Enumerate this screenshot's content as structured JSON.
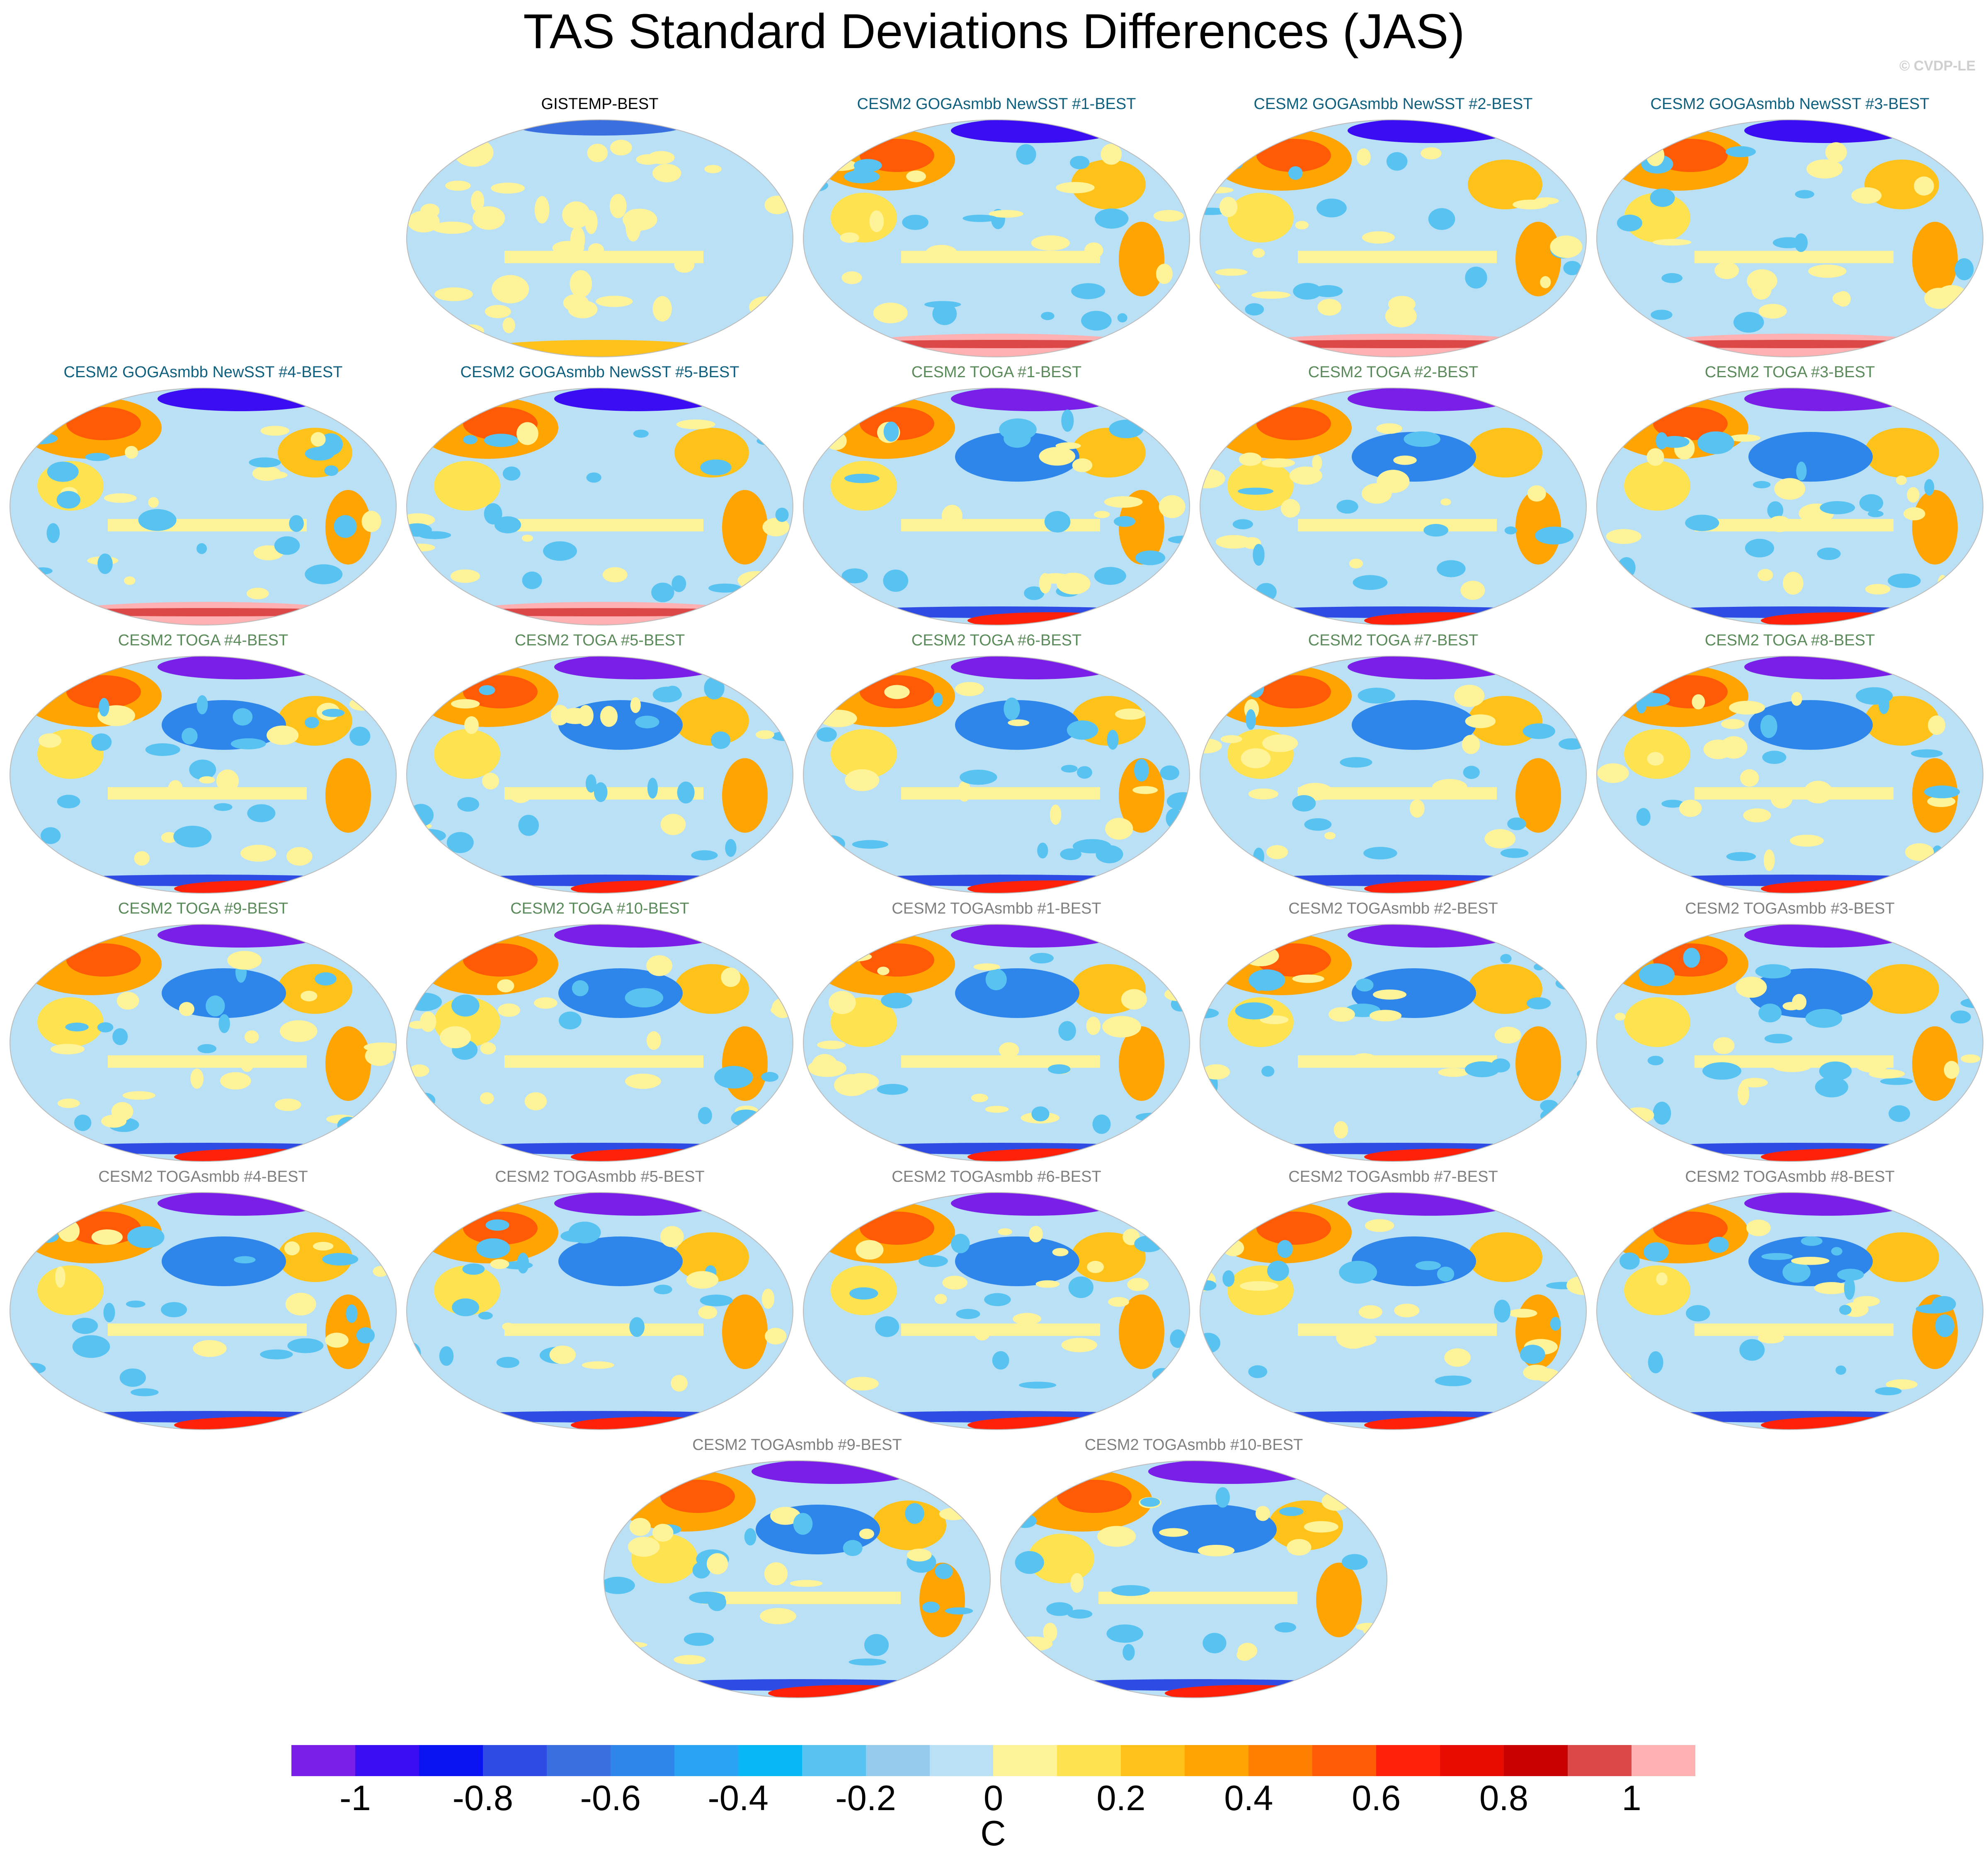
{
  "title": "TAS Standard Deviations Differences (JAS)",
  "credit": "© CVDP-LE",
  "units": "C",
  "colors": {
    "obs_label": "#000000",
    "goga_label": "#0f5f7f",
    "toga_label": "#5a8a5a",
    "togasmbb_label": "#7f7f7f"
  },
  "colorbar": {
    "colors": [
      "#7a1fe8",
      "#3a0df2",
      "#0a14f2",
      "#2e4be4",
      "#3a6fe0",
      "#2e86ea",
      "#2aa3f2",
      "#08b8f4",
      "#58c2f0",
      "#96cbee",
      "#b9e0f5",
      "#fff39a",
      "#ffe24f",
      "#ffc21a",
      "#ffa400",
      "#ff8000",
      "#ff5a05",
      "#ff2108",
      "#e80b00",
      "#c80000",
      "#dc4848",
      "#ffb0b0"
    ],
    "tick_labels": [
      "-1",
      "-0.8",
      "-0.6",
      "-0.4",
      "-0.2",
      "0",
      "0.2",
      "0.4",
      "0.6",
      "0.8",
      "1"
    ]
  },
  "panels": [
    {
      "label": "GISTEMP-BEST",
      "group": "obs"
    },
    {
      "label": "CESM2 GOGAsmbb NewSST #1-BEST",
      "group": "goga"
    },
    {
      "label": "CESM2 GOGAsmbb NewSST #2-BEST",
      "group": "goga"
    },
    {
      "label": "CESM2 GOGAsmbb NewSST #3-BEST",
      "group": "goga"
    },
    {
      "label": "CESM2 GOGAsmbb NewSST #4-BEST",
      "group": "goga"
    },
    {
      "label": "CESM2 GOGAsmbb NewSST #5-BEST",
      "group": "goga"
    },
    {
      "label": "CESM2 TOGA #1-BEST",
      "group": "toga"
    },
    {
      "label": "CESM2 TOGA #2-BEST",
      "group": "toga"
    },
    {
      "label": "CESM2 TOGA #3-BEST",
      "group": "toga"
    },
    {
      "label": "CESM2 TOGA #4-BEST",
      "group": "toga"
    },
    {
      "label": "CESM2 TOGA #5-BEST",
      "group": "toga"
    },
    {
      "label": "CESM2 TOGA #6-BEST",
      "group": "toga"
    },
    {
      "label": "CESM2 TOGA #7-BEST",
      "group": "toga"
    },
    {
      "label": "CESM2 TOGA #8-BEST",
      "group": "toga"
    },
    {
      "label": "CESM2 TOGA #9-BEST",
      "group": "toga"
    },
    {
      "label": "CESM2 TOGA #10-BEST",
      "group": "toga"
    },
    {
      "label": "CESM2 TOGAsmbb #1-BEST",
      "group": "togasmbb"
    },
    {
      "label": "CESM2 TOGAsmbb #2-BEST",
      "group": "togasmbb"
    },
    {
      "label": "CESM2 TOGAsmbb #3-BEST",
      "group": "togasmbb"
    },
    {
      "label": "CESM2 TOGAsmbb #4-BEST",
      "group": "togasmbb"
    },
    {
      "label": "CESM2 TOGAsmbb #5-BEST",
      "group": "togasmbb"
    },
    {
      "label": "CESM2 TOGAsmbb #6-BEST",
      "group": "togasmbb"
    },
    {
      "label": "CESM2 TOGAsmbb #7-BEST",
      "group": "togasmbb"
    },
    {
      "label": "CESM2 TOGAsmbb #8-BEST",
      "group": "togasmbb"
    },
    {
      "label": "CESM2 TOGAsmbb #9-BEST",
      "group": "togasmbb"
    },
    {
      "label": "CESM2 TOGAsmbb #10-BEST",
      "group": "togasmbb"
    }
  ]
}
